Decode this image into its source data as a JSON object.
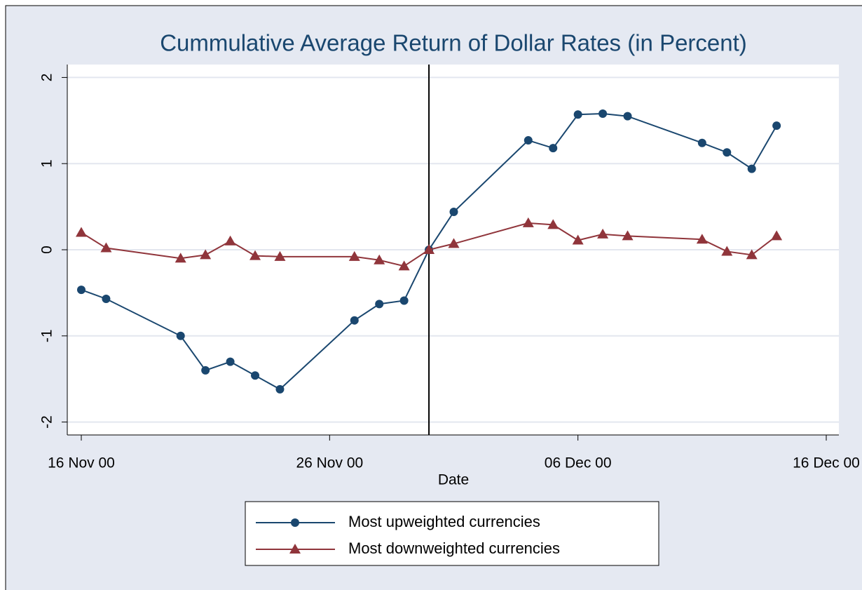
{
  "chart_data": {
    "type": "line",
    "title": "Cummulative Average Return of Dollar Rates (in Percent)",
    "x_label": "Date",
    "x": [
      "2000-11-16",
      "2000-11-17",
      "2000-11-20",
      "2000-11-21",
      "2000-11-22",
      "2000-11-23",
      "2000-11-24",
      "2000-11-27",
      "2000-11-28",
      "2000-11-29",
      "2000-11-30",
      "2000-12-01",
      "2000-12-04",
      "2000-12-05",
      "2000-12-06",
      "2000-12-07",
      "2000-12-08",
      "2000-12-11",
      "2000-12-12",
      "2000-12-13",
      "2000-12-14"
    ],
    "series": [
      {
        "name": "Most upweighted currencies",
        "color": "#1a476f",
        "marker": "circle",
        "values": [
          -0.465,
          -0.57,
          -1.0,
          -1.4,
          -1.3,
          -1.46,
          -1.62,
          -0.82,
          -0.63,
          -0.59,
          0,
          0.44,
          1.27,
          1.18,
          1.57,
          1.58,
          1.55,
          1.24,
          1.13,
          0.94,
          1.44
        ]
      },
      {
        "name": "Most downweighted currencies",
        "color": "#90353b",
        "marker": "triangle",
        "values": [
          0.2,
          0.02,
          -0.1,
          -0.06,
          0.1,
          -0.07,
          -0.08,
          -0.08,
          -0.12,
          -0.19,
          0,
          0.07,
          0.31,
          0.29,
          0.11,
          0.18,
          0.16,
          0.12,
          -0.02,
          -0.06,
          0.16
        ]
      }
    ],
    "xlim": [
      "2000-11-16",
      "2000-12-16"
    ],
    "xticks": [
      {
        "value": "2000-11-16",
        "label": "16 Nov 00"
      },
      {
        "value": "2000-11-26",
        "label": "26 Nov 00"
      },
      {
        "value": "2000-12-06",
        "label": "06 Dec 00"
      },
      {
        "value": "2000-12-16",
        "label": "16 Dec 00"
      }
    ],
    "ylim": [
      -2.15,
      2.15
    ],
    "yticks": [
      -2,
      -1,
      0,
      1,
      2
    ],
    "xline": "2000-11-30",
    "grid": true,
    "legend": "bottom"
  }
}
